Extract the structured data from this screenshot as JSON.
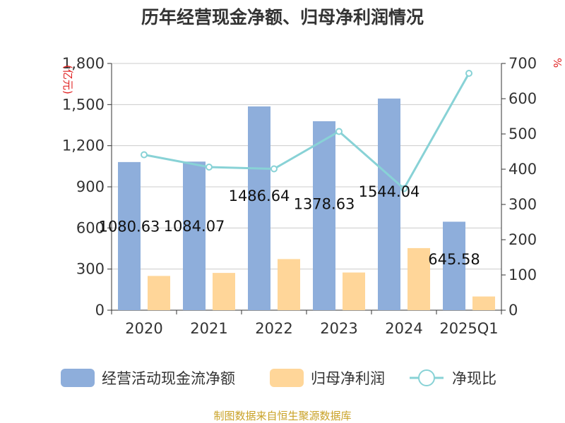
{
  "chart_data": {
    "type": "bar+line",
    "title": "历年经营现金净额、归母净利润情况",
    "categories": [
      "2020",
      "2021",
      "2022",
      "2023",
      "2024",
      "2025Q1"
    ],
    "series": [
      {
        "name": "经营活动现金流净额",
        "type": "bar",
        "axis": "left",
        "color": "#8eaedb",
        "values": [
          1080.63,
          1084.07,
          1486.64,
          1378.63,
          1544.04,
          645.58
        ],
        "data_labels": [
          "1080.63",
          "1084.07",
          "1486.64",
          "1378.63",
          "1544.04",
          "645.58"
        ]
      },
      {
        "name": "归母净利润",
        "type": "bar",
        "axis": "left",
        "color": "#ffd699",
        "values": [
          250,
          272,
          373,
          275,
          453,
          100
        ]
      },
      {
        "name": "净现比",
        "type": "line",
        "axis": "right",
        "color": "#88d2d6",
        "values": [
          441,
          406,
          401,
          507,
          345,
          672
        ]
      }
    ],
    "y_left": {
      "unit": "(亿元)",
      "ylim": [
        0,
        1800
      ],
      "ticks": [
        0,
        300,
        600,
        900,
        1200,
        1500,
        1800
      ],
      "tick_labels": [
        "0",
        "300",
        "600",
        "900",
        "1,200",
        "1,500",
        "1,800"
      ]
    },
    "y_right": {
      "unit": "%",
      "ylim": [
        0,
        700
      ],
      "ticks": [
        0,
        100,
        200,
        300,
        400,
        500,
        600,
        700
      ],
      "tick_labels": [
        "0",
        "100",
        "200",
        "300",
        "400",
        "500",
        "600",
        "700"
      ]
    },
    "grid": true,
    "legend": [
      "经营活动现金流净额",
      "归母净利润",
      "净现比"
    ],
    "legend_position": "bottom",
    "source": "制图数据来自恒生聚源数据库"
  }
}
